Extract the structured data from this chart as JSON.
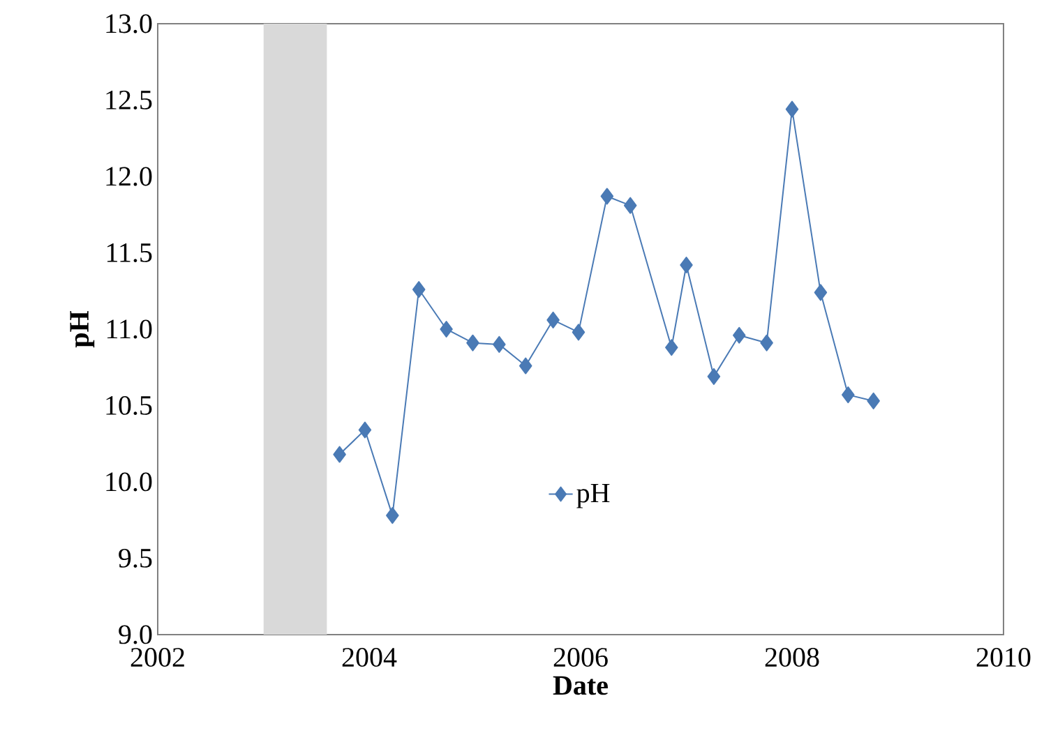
{
  "chart_data": {
    "type": "line",
    "xlabel": "Date",
    "ylabel": "pH",
    "series": [
      {
        "name": "pH",
        "color": "#4a7ab5",
        "x": [
          2003.72,
          2003.96,
          2004.22,
          2004.47,
          2004.73,
          2004.98,
          2005.23,
          2005.48,
          2005.74,
          2005.98,
          2006.25,
          2006.47,
          2006.86,
          2007.0,
          2007.26,
          2007.5,
          2007.76,
          2008.0,
          2008.27,
          2008.53,
          2008.77
        ],
        "values": [
          10.18,
          10.34,
          9.78,
          11.26,
          11.0,
          10.91,
          10.9,
          10.76,
          11.06,
          10.98,
          11.87,
          11.81,
          10.88,
          11.42,
          10.69,
          10.96,
          10.91,
          12.44,
          11.24,
          10.57,
          10.53
        ]
      }
    ],
    "xlim": [
      2002,
      2010
    ],
    "xticks": [
      2002,
      2004,
      2006,
      2008,
      2010
    ],
    "ylim": [
      9.0,
      13.0
    ],
    "yticks": [
      {
        "value": 9.0,
        "label": "9.0"
      },
      9.5,
      {
        "value": 10.0,
        "label": "10.0"
      },
      10.5,
      {
        "value": 11.0,
        "label": "11.0"
      },
      11.5,
      {
        "value": 12.0,
        "label": "12.0"
      },
      12.5,
      {
        "value": 13.0,
        "label": "13.0"
      }
    ],
    "bands": [
      {
        "axis": "x",
        "from": 2003.0,
        "to": 2003.6,
        "color": "#d9d9d9"
      }
    ],
    "grid": false,
    "legend": "bottom",
    "marker": "diamond",
    "line_style": "solid"
  }
}
